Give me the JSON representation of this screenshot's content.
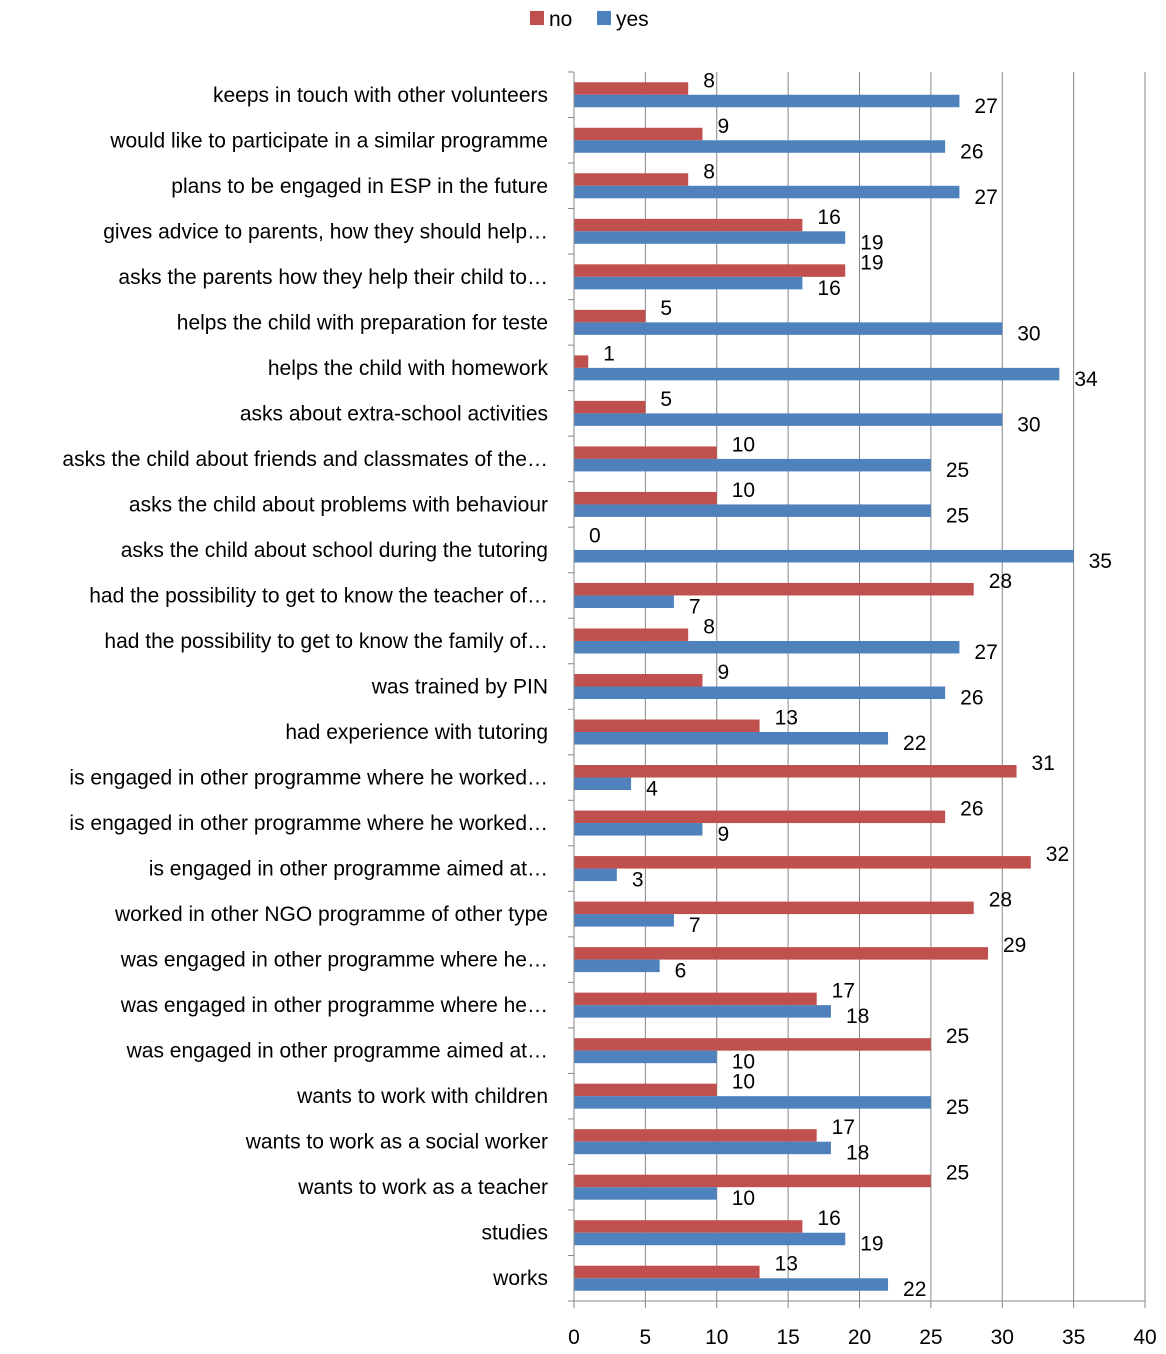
{
  "chart_data": {
    "type": "bar",
    "orientation": "horizontal",
    "categories": [
      "keeps in touch with other volunteers",
      "would like to participate in a similar programme",
      "plans to be engaged in ESP in the future",
      "gives advice to parents, how they should help…",
      "asks the parents how they help their child to…",
      "helps the child with preparation for teste",
      "helps the child with homework",
      "asks about extra-school activities",
      "asks the child about friends and classmates of the…",
      "asks the child about problems with behaviour",
      "asks the child about school during the tutoring",
      "had the possibility to get to know the teacher of…",
      "had the possibility to get to know the family of…",
      "was trained by PIN",
      "had experience with tutoring",
      "is engaged in other programme where he worked…",
      "is engaged in other programme where he worked…",
      "is engaged in other programme aimed at…",
      "worked in other NGO programme of other type",
      "was engaged in other programme where he…",
      "was engaged in other programme where he…",
      "was engaged in other programme aimed at…",
      "wants to work with children",
      "wants to work as a social worker",
      "wants to work as a teacher",
      "studies",
      "works"
    ],
    "series": [
      {
        "name": "no",
        "color": "#c0504d",
        "values": [
          8,
          9,
          8,
          16,
          19,
          5,
          1,
          5,
          10,
          10,
          0,
          28,
          8,
          9,
          13,
          31,
          26,
          32,
          28,
          29,
          17,
          25,
          10,
          17,
          25,
          16,
          13
        ]
      },
      {
        "name": "yes",
        "color": "#4f81bd",
        "values": [
          27,
          26,
          27,
          19,
          16,
          30,
          34,
          30,
          25,
          25,
          35,
          7,
          27,
          26,
          22,
          4,
          9,
          3,
          7,
          6,
          18,
          10,
          25,
          18,
          10,
          19,
          22
        ]
      }
    ],
    "xlim": [
      0,
      40
    ],
    "xticks": [
      "0",
      "5",
      "10",
      "15",
      "20",
      "25",
      "30",
      "35",
      "40"
    ],
    "grid": true,
    "legend": "top-center"
  }
}
